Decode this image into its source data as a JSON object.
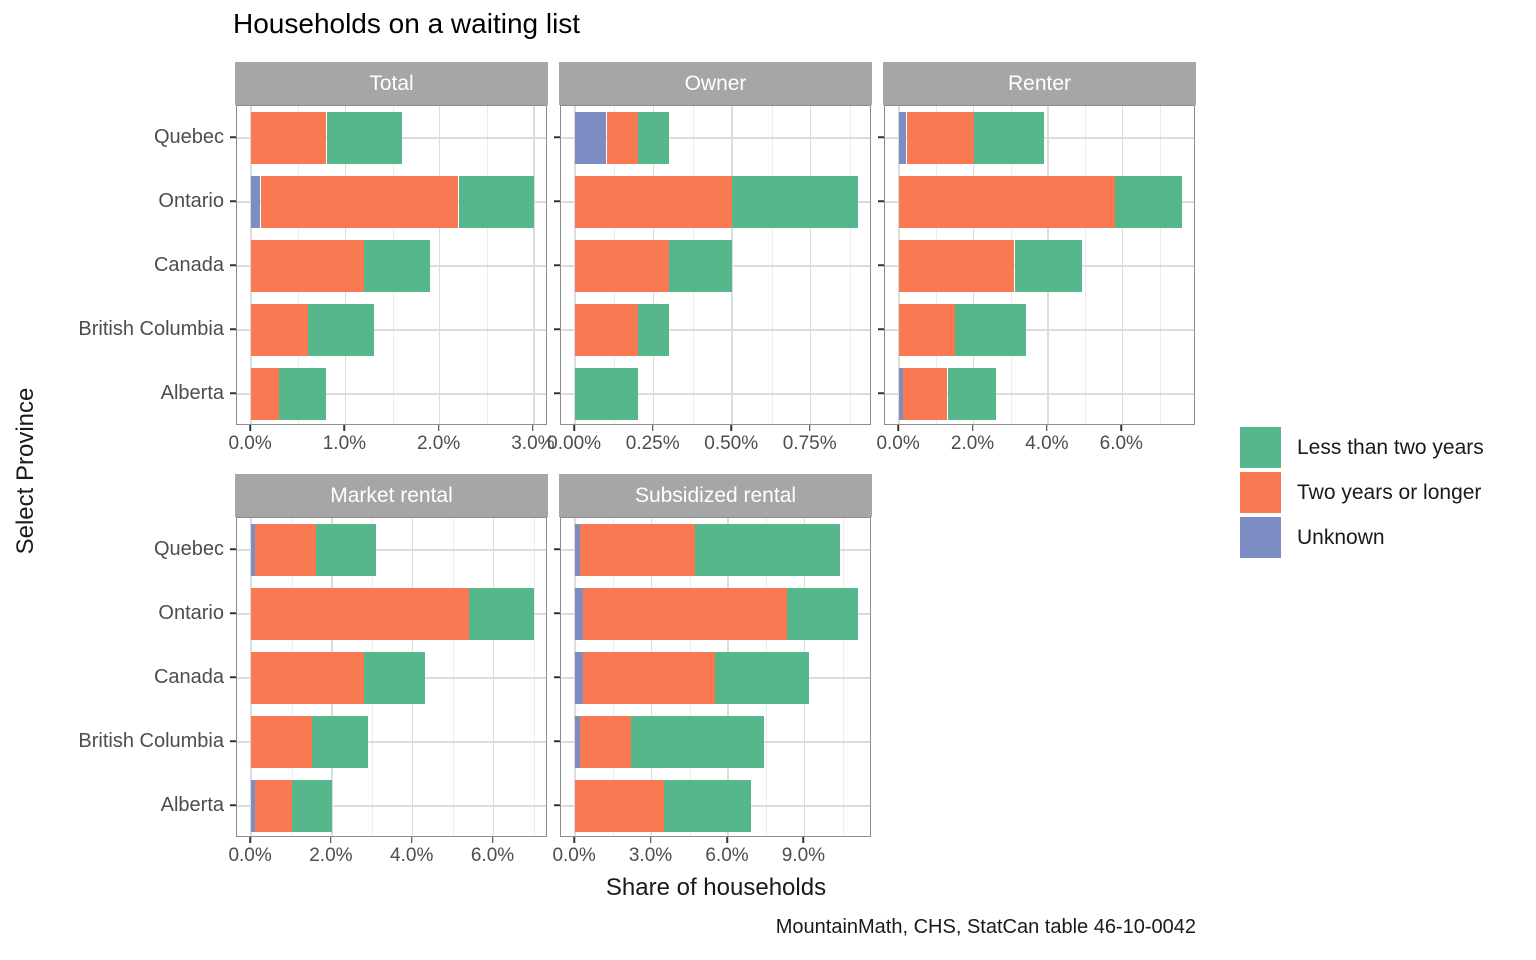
{
  "title": "Households on a waiting list",
  "xlabel": "Share of households",
  "ylabel": "Select Province",
  "caption": "MountainMath, CHS, StatCan table 46-10-0042",
  "colors": {
    "series": [
      "#7C8DC3",
      "#F87952",
      "#56B78D"
    ],
    "strip_background": "#A6A6A6",
    "strip_text": "#FFFFFF",
    "panel_border": "#8C8C8C",
    "grid_major": "#DCDCDC",
    "grid_minor": "#ECECEC",
    "tick_mark": "#333333",
    "axis_text": "#4D4D4D"
  },
  "legend": {
    "position": "right",
    "items": [
      {
        "label": "Less than two years",
        "color": "#56B78D"
      },
      {
        "label": "Two years or longer",
        "color": "#F87952"
      },
      {
        "label": "Unknown",
        "color": "#7C8DC3"
      }
    ]
  },
  "chart_data": {
    "type": "bar",
    "orientation": "horizontal",
    "stacked": true,
    "unit": "percent of households",
    "grid": true,
    "categories": [
      "Quebec",
      "Ontario",
      "Canada",
      "British Columbia",
      "Alberta"
    ],
    "series_order": [
      "Unknown",
      "Two years or longer",
      "Less than two years"
    ],
    "facets": [
      {
        "label": "Total",
        "x_axis_ticks": [
          "0.0%",
          "1.0%",
          "2.0%",
          "3.0%"
        ],
        "tick_values": [
          0,
          1,
          2,
          3
        ],
        "minor_values": [
          0.5,
          1.5,
          2.5
        ],
        "x_max_data": 3.0,
        "values": [
          [
            0,
            0.8,
            0.8
          ],
          [
            0.1,
            2.1,
            0.8
          ],
          [
            0,
            1.2,
            0.7
          ],
          [
            0,
            0.6,
            0.7
          ],
          [
            0,
            0.3,
            0.5
          ]
        ]
      },
      {
        "label": "Owner",
        "x_axis_ticks": [
          "0.00%",
          "0.25%",
          "0.50%",
          "0.75%"
        ],
        "tick_values": [
          0,
          0.25,
          0.5,
          0.75
        ],
        "minor_values": [
          0.125,
          0.375,
          0.625,
          0.875
        ],
        "x_max_data": 0.9,
        "values": [
          [
            0.1,
            0.1,
            0.1
          ],
          [
            0,
            0.5,
            0.4
          ],
          [
            0,
            0.3,
            0.2
          ],
          [
            0,
            0.2,
            0.1
          ],
          [
            0,
            0,
            0.2
          ]
        ]
      },
      {
        "label": "Renter",
        "x_axis_ticks": [
          "0.0%",
          "2.0%",
          "4.0%",
          "6.0%"
        ],
        "tick_values": [
          0,
          2,
          4,
          6
        ],
        "minor_values": [
          1,
          3,
          5,
          7
        ],
        "x_max_data": 7.6,
        "values": [
          [
            0.2,
            1.8,
            1.9
          ],
          [
            0,
            5.8,
            1.8
          ],
          [
            0,
            3.1,
            1.8
          ],
          [
            0,
            1.5,
            1.9
          ],
          [
            0.1,
            1.2,
            1.3
          ]
        ]
      },
      {
        "label": "Market rental",
        "x_axis_ticks": [
          "0.0%",
          "2.0%",
          "4.0%",
          "6.0%"
        ],
        "tick_values": [
          0,
          2,
          4,
          6
        ],
        "minor_values": [
          1,
          3,
          5,
          7
        ],
        "x_max_data": 7.0,
        "values": [
          [
            0.1,
            1.5,
            1.5
          ],
          [
            0,
            5.4,
            1.6
          ],
          [
            0,
            2.8,
            1.5
          ],
          [
            0,
            1.5,
            1.4
          ],
          [
            0.1,
            0.9,
            1.0
          ]
        ]
      },
      {
        "label": "Subsidized rental",
        "x_axis_ticks": [
          "0.0%",
          "3.0%",
          "6.0%",
          "9.0%"
        ],
        "tick_values": [
          0,
          3,
          6,
          9
        ],
        "minor_values": [
          1.5,
          4.5,
          7.5,
          10.5
        ],
        "x_max_data": 11.1,
        "values": [
          [
            0.2,
            4.5,
            5.7
          ],
          [
            0.3,
            8.0,
            2.8
          ],
          [
            0.3,
            5.2,
            3.7
          ],
          [
            0.2,
            2.0,
            5.2
          ],
          [
            0,
            3.5,
            3.4
          ]
        ]
      }
    ]
  }
}
